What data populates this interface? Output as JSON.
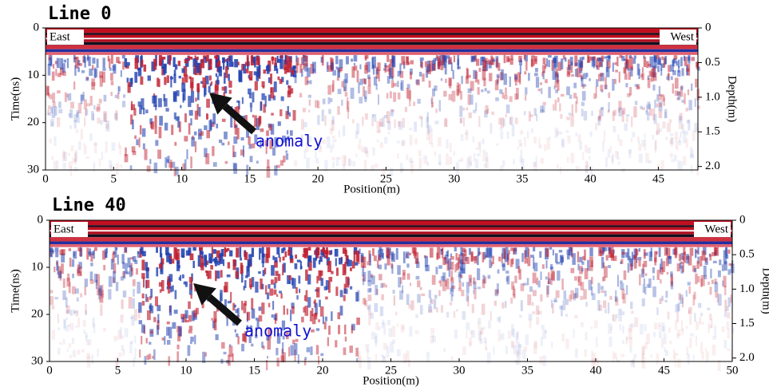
{
  "chart_data": [
    {
      "type": "radargram",
      "title": "Line 0",
      "xlabel": "Position(m)",
      "ylabel": "Time(ns)",
      "y2label": "Depth(m)",
      "inverted_y": true,
      "xlim": [
        0,
        47.9
      ],
      "xticks": [
        0,
        5,
        10,
        15,
        20,
        25,
        30,
        35,
        40,
        45
      ],
      "ylim": [
        0,
        30
      ],
      "yticks": [
        0,
        10,
        20,
        30
      ],
      "y2lim": [
        0,
        2.05
      ],
      "y2ticks": [
        0,
        0.5,
        {
          "value": 1,
          "label": "1.0"
        },
        1.5,
        {
          "value": 2,
          "label": "2.0"
        }
      ],
      "annotations": [
        "East",
        "West",
        "anomaly"
      ]
    },
    {
      "type": "radargram",
      "title": "Line 40",
      "xlabel": "Position(m)",
      "ylabel": "Time(ns)",
      "y2label": "Depth(m)",
      "inverted_y": true,
      "xlim": [
        0,
        50
      ],
      "xticks": [
        0,
        5,
        10,
        15,
        20,
        25,
        30,
        35,
        40,
        45,
        50
      ],
      "ylim": [
        0,
        30
      ],
      "yticks": [
        0,
        10,
        20,
        30
      ],
      "y2lim": [
        0,
        2.05
      ],
      "y2ticks": [
        0,
        0.5,
        {
          "value": 1,
          "label": "1.0"
        },
        1.5,
        {
          "value": 2,
          "label": "2.0"
        }
      ],
      "annotations": [
        "East",
        "West",
        "anomaly"
      ]
    }
  ]
}
